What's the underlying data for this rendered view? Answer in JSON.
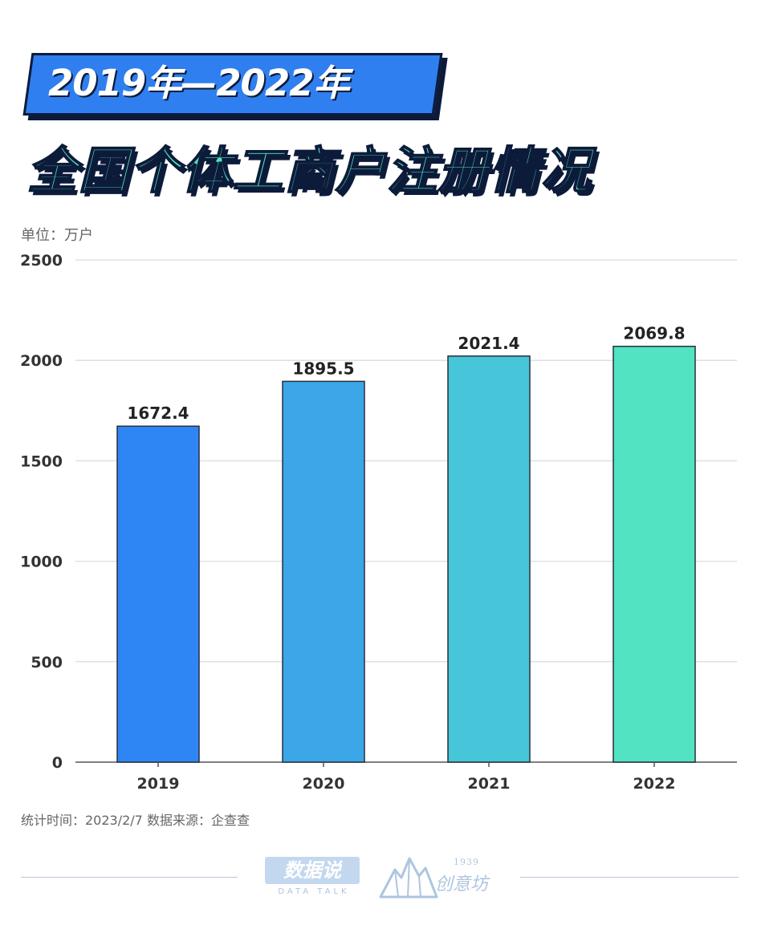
{
  "header": {
    "banner": "2019年—2022年",
    "title": "全国个体工商户注册情况"
  },
  "unit": "单位：万户",
  "chart_data": {
    "type": "bar",
    "categories": [
      "2019",
      "2020",
      "2021",
      "2022"
    ],
    "values": [
      1672.4,
      1895.5,
      2021.4,
      2069.8
    ],
    "value_labels": [
      "1672.4",
      "1895.5",
      "2021.4",
      "2069.8"
    ],
    "bar_colors": [
      "#2e86f5",
      "#3ba7e8",
      "#46c6d8",
      "#52e3c2"
    ],
    "ylim": [
      0,
      2500
    ],
    "yticks": [
      0,
      500,
      1000,
      1500,
      2000,
      2500
    ],
    "grid": true,
    "title": "",
    "xlabel": "",
    "ylabel": ""
  },
  "footer": {
    "source": "统计时间：2023/2/7 数据来源：企查查",
    "logo_left_main": "数据说",
    "logo_left_sub": "DATA TALK",
    "logo_right_year": "1939",
    "logo_right_name": "创意坊"
  },
  "colors": {
    "accent_blue": "#2f7ff0",
    "accent_green": "#4fe3bf",
    "outline": "#0d1b3a"
  }
}
